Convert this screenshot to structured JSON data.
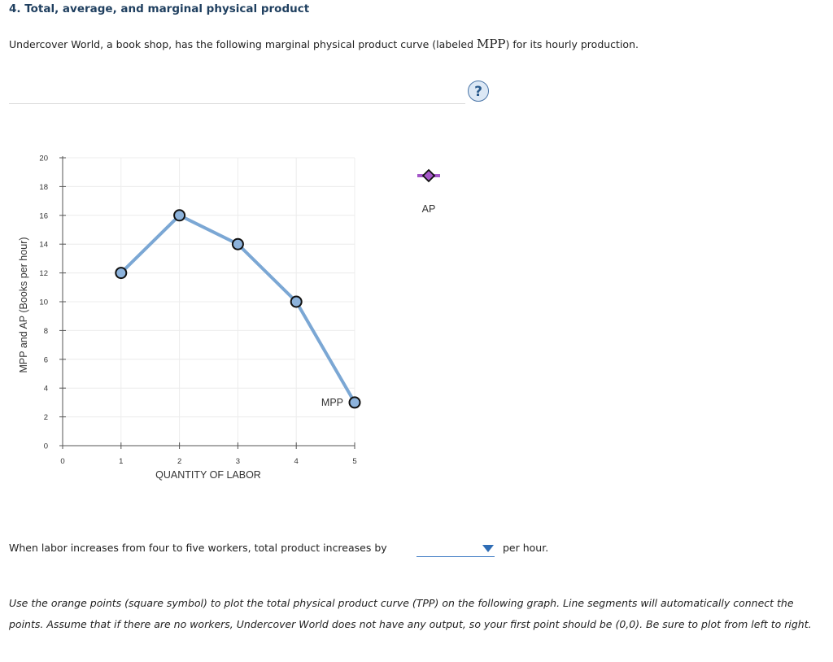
{
  "section": {
    "title": "4. Total, average, and marginal physical product"
  },
  "intro": {
    "text_before": "Undercover World, a book shop, has the following marginal physical product curve (labeled ",
    "math_label": "MPP",
    "text_after": ") for its hourly production."
  },
  "help": {
    "label": "?"
  },
  "chart_data": {
    "type": "line",
    "xlabel": "QUANTITY OF LABOR",
    "ylabel": "MPP and AP (Books per hour)",
    "xlim": [
      0,
      5
    ],
    "ylim": [
      0,
      20
    ],
    "x_ticks": [
      "0",
      "1",
      "2",
      "3",
      "4",
      "5"
    ],
    "y_ticks": [
      "0",
      "2",
      "4",
      "6",
      "8",
      "10",
      "12",
      "14",
      "16",
      "18",
      "20"
    ],
    "grid": true,
    "series": [
      {
        "name": "MPP",
        "label": "MPP",
        "x": [
          1,
          2,
          3,
          4,
          5
        ],
        "values": [
          12,
          16,
          14,
          10,
          3
        ],
        "color": "#7ba7d4",
        "marker": "circle"
      }
    ],
    "legend": [
      {
        "name": "AP",
        "label": "AP",
        "marker": "diamond",
        "color": "#a557c9"
      }
    ]
  },
  "question": {
    "text": "When labor increases from four to five workers, total product increases by",
    "dropdown_value": "",
    "suffix": "per hour."
  },
  "instructions": {
    "text": "Use the orange points (square symbol) to plot the total physical product curve (TPP) on the following graph. Line segments will automatically connect the points. Assume that if there are no workers, Undercover World does not have any output, so your first point should be (0,0). Be sure to plot from left to right."
  },
  "colors": {
    "title": "#1f3f5f",
    "mpp_line": "#7ba7d4",
    "mpp_marker_fill": "#8db3dc",
    "ap_marker": "#a557c9",
    "dropdown_accent": "#2f6db5"
  }
}
